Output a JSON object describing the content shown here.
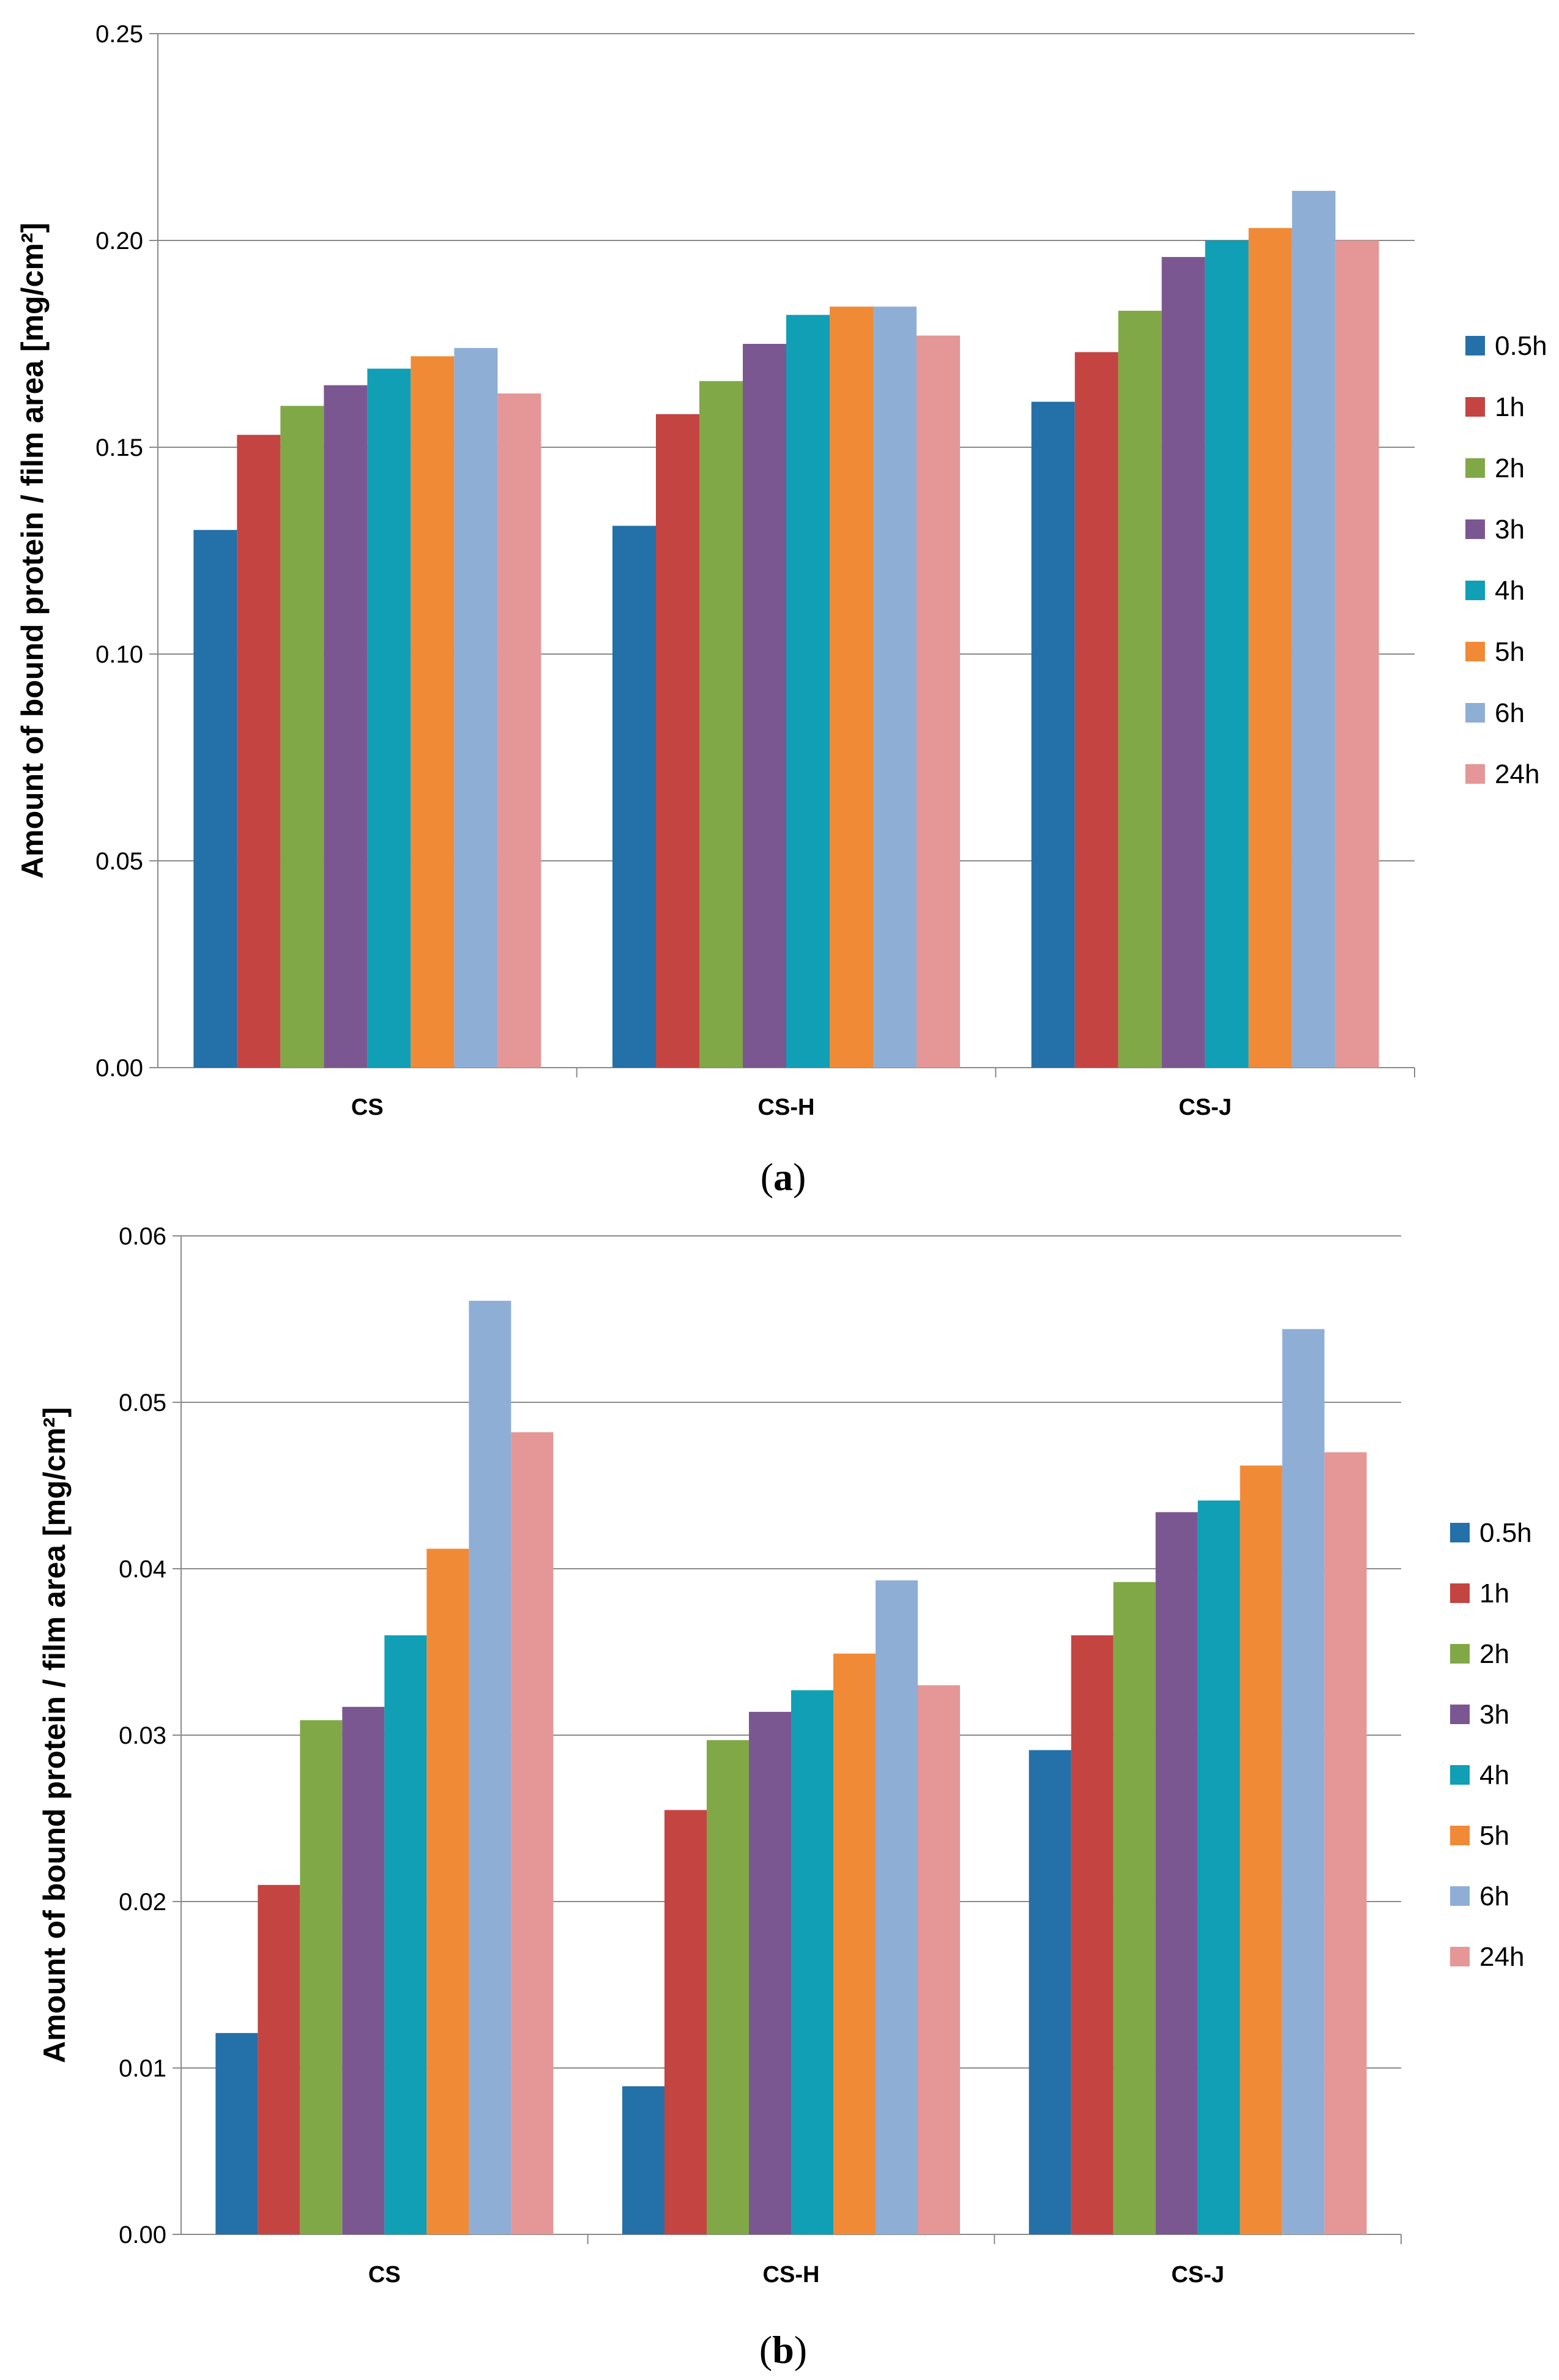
{
  "chart_data": [
    {
      "type": "bar",
      "panel": "a",
      "caption_letter": "a",
      "categories": [
        "CS",
        "CS-H",
        "CS-J"
      ],
      "ylabel": "Amount of bound protein / film area [mg/cm²]",
      "xlabel": "",
      "ylim": [
        0,
        0.25
      ],
      "yticks": [
        "0.00",
        "0.05",
        "0.10",
        "0.15",
        "0.20",
        "0.25"
      ],
      "grid": true,
      "legend_position": "right",
      "series": [
        {
          "name": "0.5h",
          "color": "#2470A8",
          "values": [
            0.13,
            0.131,
            0.161
          ]
        },
        {
          "name": "1h",
          "color": "#C44442",
          "values": [
            0.153,
            0.158,
            0.173
          ]
        },
        {
          "name": "2h",
          "color": "#81A846",
          "values": [
            0.16,
            0.166,
            0.183
          ]
        },
        {
          "name": "3h",
          "color": "#7B5792",
          "values": [
            0.165,
            0.175,
            0.196
          ]
        },
        {
          "name": "4h",
          "color": "#109FB5",
          "values": [
            0.169,
            0.182,
            0.2
          ]
        },
        {
          "name": "5h",
          "color": "#F18A36",
          "values": [
            0.172,
            0.184,
            0.203
          ]
        },
        {
          "name": "6h",
          "color": "#8FAED6",
          "values": [
            0.174,
            0.184,
            0.212
          ]
        },
        {
          "name": "24h",
          "color": "#E59696",
          "values": [
            0.163,
            0.177,
            0.2
          ]
        }
      ]
    },
    {
      "type": "bar",
      "panel": "b",
      "caption_letter": "b",
      "categories": [
        "CS",
        "CS-H",
        "CS-J"
      ],
      "ylabel": "Amount of bound protein / film area [mg/cm²]",
      "xlabel": "",
      "ylim": [
        0,
        0.06
      ],
      "yticks": [
        "0.00",
        "0.01",
        "0.02",
        "0.03",
        "0.04",
        "0.05",
        "0.06"
      ],
      "grid": true,
      "legend_position": "right",
      "series": [
        {
          "name": "0.5h",
          "color": "#2470A8",
          "values": [
            0.0121,
            0.0089,
            0.0291
          ]
        },
        {
          "name": "1h",
          "color": "#C44442",
          "values": [
            0.021,
            0.0255,
            0.036
          ]
        },
        {
          "name": "2h",
          "color": "#81A846",
          "values": [
            0.0309,
            0.0297,
            0.0392
          ]
        },
        {
          "name": "3h",
          "color": "#7B5792",
          "values": [
            0.0317,
            0.0314,
            0.0434
          ]
        },
        {
          "name": "4h",
          "color": "#109FB5",
          "values": [
            0.036,
            0.0327,
            0.0441
          ]
        },
        {
          "name": "5h",
          "color": "#F18A36",
          "values": [
            0.0412,
            0.0349,
            0.0462
          ]
        },
        {
          "name": "6h",
          "color": "#8FAED6",
          "values": [
            0.0561,
            0.0393,
            0.0544
          ]
        },
        {
          "name": "24h",
          "color": "#E59696",
          "values": [
            0.0482,
            0.033,
            0.047
          ]
        }
      ]
    }
  ]
}
